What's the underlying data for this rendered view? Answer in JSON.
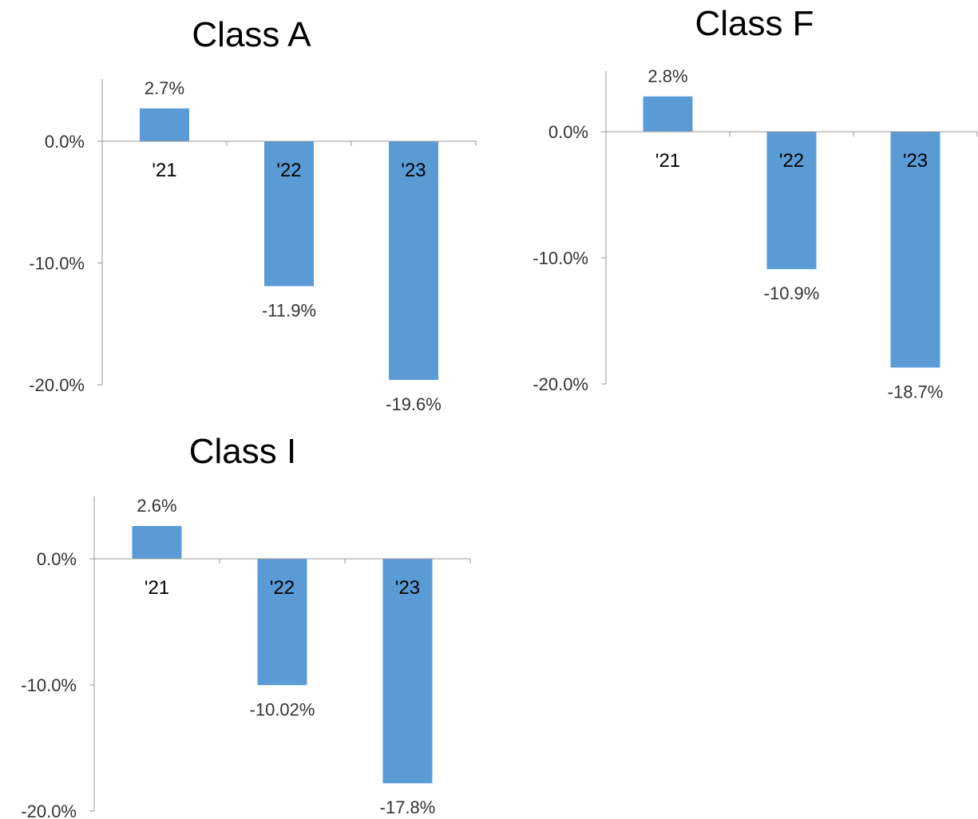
{
  "colors": {
    "bar": "#5b9bd5",
    "axis": "#999999",
    "text": "#333333"
  },
  "chart_data": [
    {
      "type": "bar",
      "title": "Class A",
      "categories": [
        "'21",
        "'22",
        "'23"
      ],
      "values": [
        2.7,
        -11.9,
        -19.6
      ],
      "data_labels": [
        "2.7%",
        "-11.9%",
        "-19.6%"
      ],
      "ylim": [
        -20,
        5
      ],
      "yticks": [
        0,
        -10,
        -20
      ],
      "ytick_labels": [
        "0.0%",
        "-10.0%",
        "-20.0%"
      ],
      "grid": false,
      "legend": "none"
    },
    {
      "type": "bar",
      "title": "Class F",
      "categories": [
        "'21",
        "'22",
        "'23"
      ],
      "values": [
        2.8,
        -10.9,
        -18.7
      ],
      "data_labels": [
        "2.8%",
        "-10.9%",
        "-18.7%"
      ],
      "ylim": [
        -20,
        5
      ],
      "yticks": [
        0,
        -10,
        -20
      ],
      "ytick_labels": [
        "0.0%",
        "-10.0%",
        "-20.0%"
      ],
      "grid": false,
      "legend": "none"
    },
    {
      "type": "bar",
      "title": "Class I",
      "categories": [
        "'21",
        "'22",
        "'23"
      ],
      "values": [
        2.6,
        -10.02,
        -17.8
      ],
      "data_labels": [
        "2.6%",
        "-10.02%",
        "-17.8%"
      ],
      "ylim": [
        -20,
        5
      ],
      "yticks": [
        0,
        -10,
        -20
      ],
      "ytick_labels": [
        "0.0%",
        "-10.0%",
        "-20.0%"
      ],
      "grid": false,
      "legend": "none"
    }
  ]
}
